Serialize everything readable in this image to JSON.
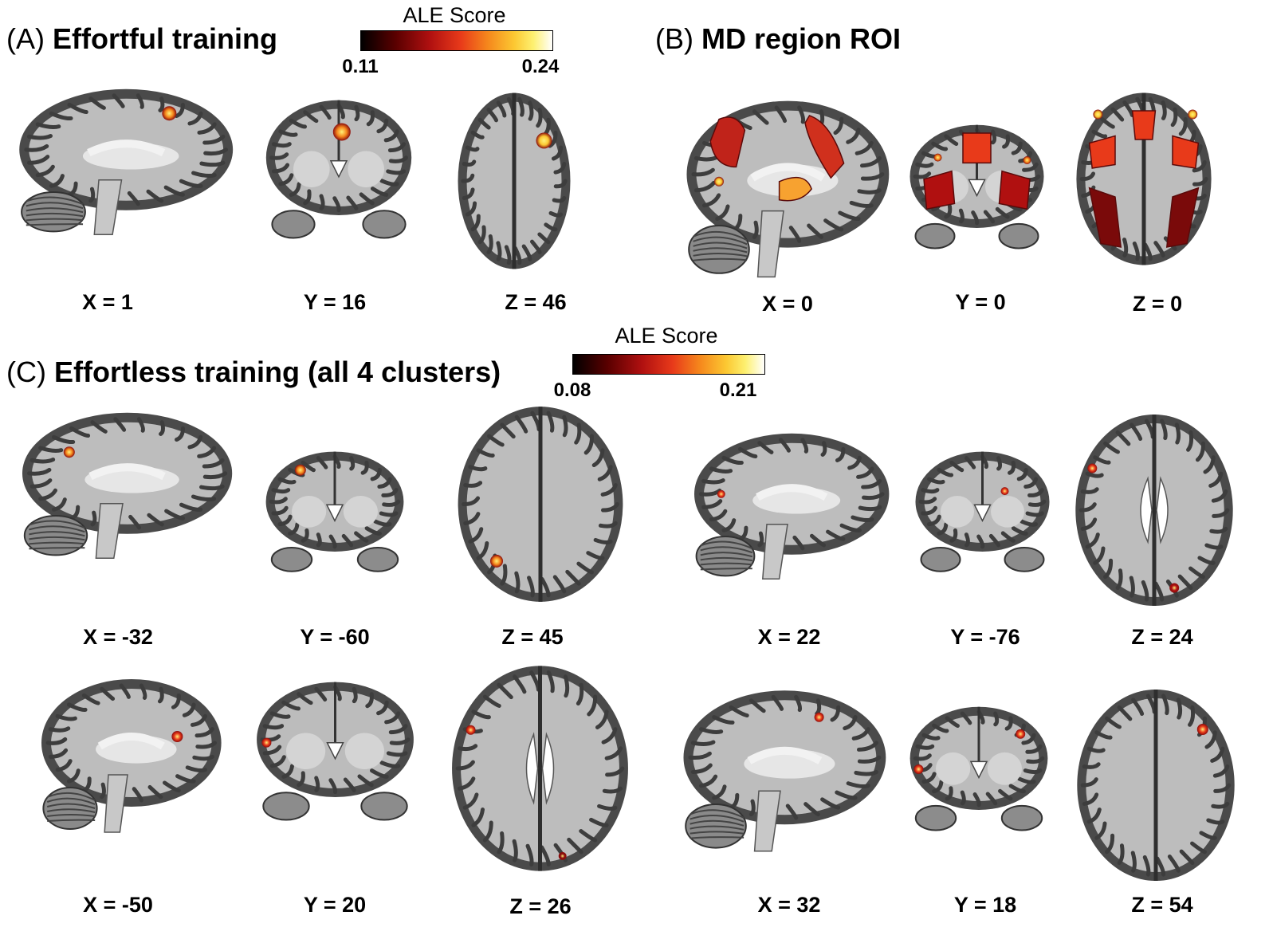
{
  "panels": {
    "a": {
      "letter": "(A)",
      "name": "Effortful training"
    },
    "b": {
      "letter": "(B)",
      "name": "MD region ROI"
    },
    "c": {
      "letter": "(C)",
      "name": "Effortless training (all 4 clusters)"
    }
  },
  "colorbars": {
    "top": {
      "title": "ALE Score",
      "min": "0.11",
      "max": "0.24"
    },
    "bottom": {
      "title": "ALE Score",
      "min": "0.08",
      "max": "0.21"
    }
  },
  "colormap": [
    "#000000",
    "#5a0000",
    "#b01010",
    "#e83a1a",
    "#f5861c",
    "#fcc832",
    "#fdf070",
    "#ffffff"
  ],
  "coords": {
    "a": [
      "X = 1",
      "Y = 16",
      "Z = 46"
    ],
    "b": [
      "X = 0",
      "Y = 0",
      "Z = 0"
    ],
    "c1": [
      "X = -32",
      "Y = -60",
      "Z = 45",
      "X = 22",
      "Y = -76",
      "Z = 24"
    ],
    "c2": [
      "X = -50",
      "Y = 20",
      "Z = 26",
      "X = 32",
      "Y = 18",
      "Z = 54"
    ]
  }
}
